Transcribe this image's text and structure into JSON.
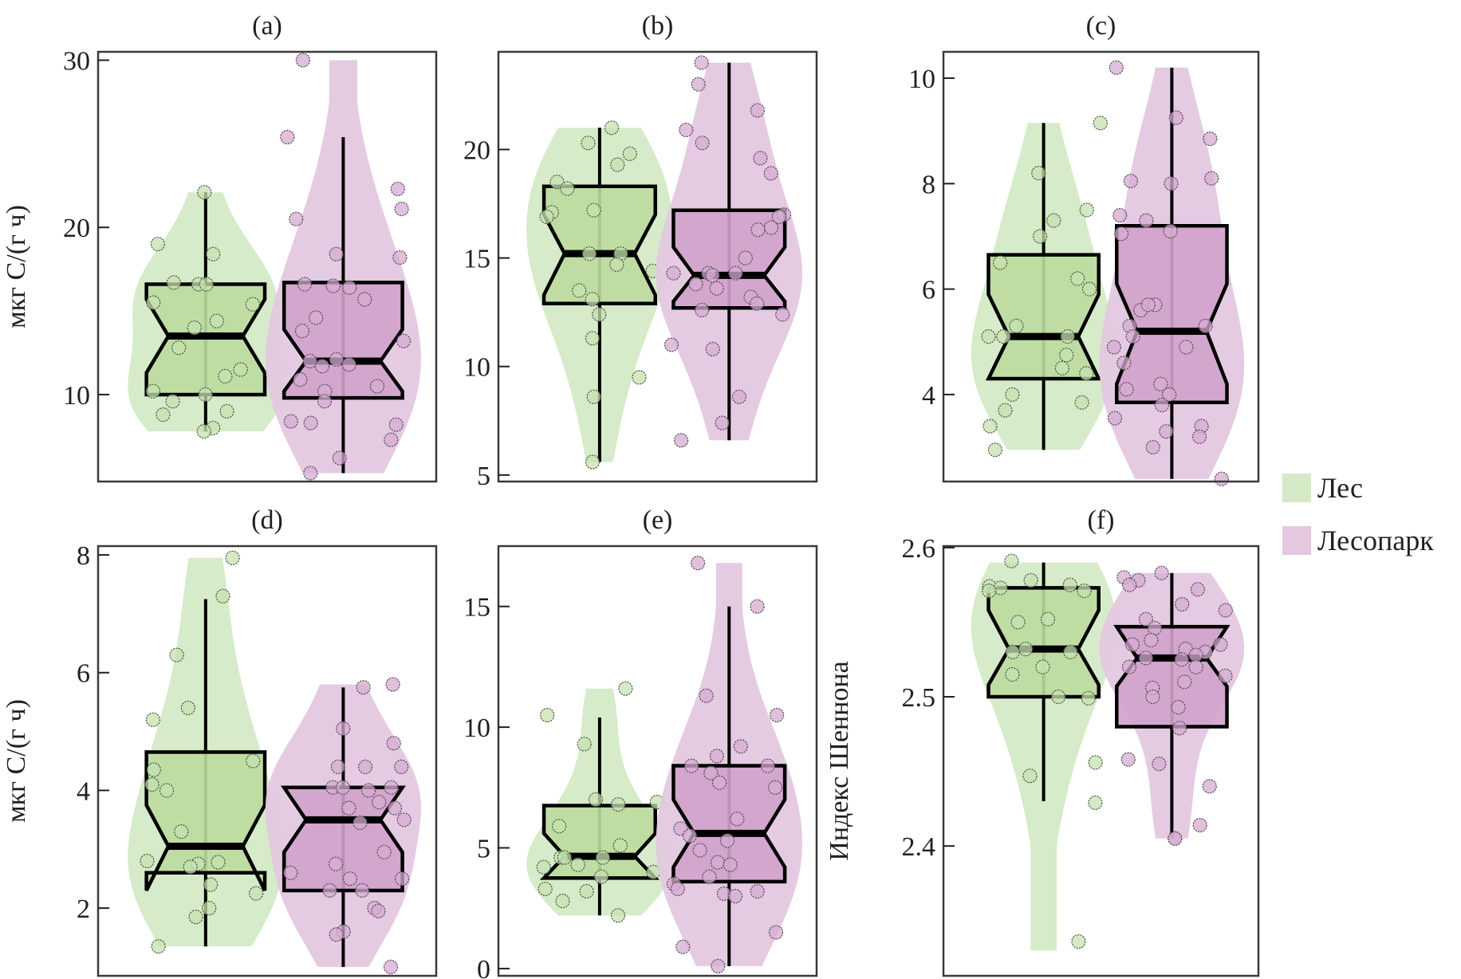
{
  "chart_data": {
    "type": "violin-box",
    "layout": "2x3 grid",
    "legend": {
      "placement": "right",
      "entries": [
        {
          "label": "Лес",
          "color": "#d4eac6"
        },
        {
          "label": "Лесопарк",
          "color": "#e3c8e0"
        }
      ]
    },
    "colors": {
      "Лес": {
        "violin": "#d4eac6",
        "box": "#bddc9e",
        "point_fill": "#c6e2b0",
        "point_stroke": "#4a5a44"
      },
      "Лесопарк": {
        "violin": "#e3c8e0",
        "box": "#d0a2cb",
        "point_fill": "#d6acd2",
        "point_stroke": "#5a4a5a"
      }
    },
    "panels": [
      {
        "id": "a",
        "title": "(a)",
        "ylabel": "мкг C/(г ч)",
        "yticks": [
          10,
          20,
          30
        ],
        "ylim": [
          4.8,
          30.5
        ],
        "groups": [
          {
            "name": "Лес",
            "whisker_low": 7.8,
            "q1": 10.0,
            "median": 13.5,
            "q3": 16.6,
            "whisker_high": 22.1,
            "notch_low": 11.3,
            "notch_high": 15.7,
            "violin_min": 7.8,
            "violin_max": 22.1,
            "points": [
              22.1,
              18.4,
              19.0,
              16.7,
              16.6,
              16.6,
              15.5,
              15.4,
              14.4,
              14.0,
              12.8,
              11.5,
              11.1,
              10.2,
              10.0,
              9.6,
              9.0,
              8.8,
              8.0,
              7.8
            ]
          },
          {
            "name": "Лесопарк",
            "whisker_low": 5.3,
            "q1": 9.8,
            "median": 12.0,
            "q3": 16.7,
            "whisker_high": 25.4,
            "notch_low": 10.2,
            "notch_high": 13.9,
            "violin_min": 5.3,
            "violin_max": 30.0,
            "points": [
              30.0,
              25.4,
              22.3,
              21.1,
              20.5,
              18.4,
              18.2,
              16.6,
              16.5,
              16.4,
              15.7,
              14.6,
              13.8,
              13.2,
              12.1,
              12.0,
              11.8,
              11.7,
              10.9,
              10.5,
              10.2,
              9.6,
              8.4,
              8.2,
              8.3,
              7.3,
              6.2,
              5.3
            ]
          }
        ]
      },
      {
        "id": "b",
        "title": "(b)",
        "ylabel": "",
        "yticks": [
          5,
          10,
          15,
          20
        ],
        "ylim": [
          4.7,
          24.5
        ],
        "groups": [
          {
            "name": "Лес",
            "whisker_low": 5.6,
            "q1": 12.9,
            "median": 15.2,
            "q3": 18.3,
            "whisker_high": 21.0,
            "notch_low": 13.3,
            "notch_high": 17.0,
            "violin_min": 5.6,
            "violin_max": 21.0,
            "points": [
              21.0,
              20.3,
              19.8,
              19.3,
              18.5,
              18.2,
              17.2,
              17.1,
              16.9,
              15.2,
              15.2,
              14.7,
              14.4,
              13.5,
              13.1,
              12.4,
              11.3,
              9.5,
              8.6,
              5.6
            ]
          },
          {
            "name": "Лесопарк",
            "whisker_low": 6.6,
            "q1": 12.7,
            "median": 14.2,
            "q3": 17.2,
            "whisker_high": 24.0,
            "notch_low": 13.0,
            "notch_high": 15.5,
            "violin_min": 6.6,
            "violin_max": 24.0,
            "points": [
              24.0,
              23.0,
              21.8,
              20.9,
              20.3,
              19.6,
              18.9,
              17.0,
              16.9,
              16.4,
              16.3,
              15.0,
              14.3,
              14.3,
              14.3,
              14.2,
              13.8,
              13.6,
              13.2,
              12.9,
              12.6,
              12.4,
              11.0,
              10.8,
              8.6,
              7.4,
              6.6
            ]
          }
        ]
      },
      {
        "id": "c",
        "title": "(c)",
        "ylabel": "",
        "yticks": [
          4,
          6,
          8,
          10
        ],
        "ylim": [
          2.35,
          10.5
        ],
        "groups": [
          {
            "name": "Лес",
            "whisker_low": 2.95,
            "q1": 4.3,
            "median": 5.1,
            "q3": 6.65,
            "whisker_high": 9.15,
            "notch_low": 4.3,
            "notch_high": 5.9,
            "violin_min": 2.95,
            "violin_max": 9.15,
            "points": [
              9.15,
              8.2,
              7.5,
              7.3,
              7.0,
              6.5,
              6.2,
              6.0,
              5.3,
              5.1,
              5.1,
              5.1,
              4.75,
              4.5,
              4.4,
              4.0,
              3.85,
              3.7,
              3.4,
              2.95
            ]
          },
          {
            "name": "Лесопарк",
            "whisker_low": 2.4,
            "q1": 3.85,
            "median": 5.2,
            "q3": 7.2,
            "whisker_high": 10.2,
            "notch_low": 4.2,
            "notch_high": 6.1,
            "violin_min": 2.4,
            "violin_max": 10.2,
            "points": [
              10.2,
              9.25,
              8.85,
              8.1,
              8.05,
              8.0,
              7.4,
              7.3,
              7.1,
              7.05,
              5.7,
              5.6,
              5.7,
              5.3,
              5.3,
              5.1,
              4.9,
              4.9,
              4.6,
              4.2,
              4.1,
              4.0,
              3.8,
              3.55,
              3.4,
              3.3,
              3.2,
              3.0,
              2.4
            ]
          }
        ]
      },
      {
        "id": "d",
        "title": "(d)",
        "ylabel": "мкг C/(г ч)",
        "yticks": [
          2,
          4,
          6,
          8
        ],
        "ylim": [
          0.85,
          8.15
        ],
        "groups": [
          {
            "name": "Лес",
            "whisker_low": 1.35,
            "q1": 2.6,
            "median": 3.05,
            "q3": 4.65,
            "whisker_high": 7.25,
            "notch_low": 2.3,
            "notch_high": 3.75,
            "violin_min": 1.35,
            "violin_max": 7.95,
            "points": [
              7.95,
              7.3,
              6.3,
              5.4,
              5.2,
              4.5,
              4.35,
              4.1,
              4.0,
              3.3,
              2.8,
              2.78,
              2.75,
              2.7,
              2.4,
              2.25,
              2.0,
              1.85,
              1.35
            ]
          },
          {
            "name": "Лесопарк",
            "whisker_low": 1.0,
            "q1": 2.3,
            "median": 3.5,
            "q3": 4.05,
            "whisker_high": 5.75,
            "notch_low": 2.95,
            "notch_high": 4.05,
            "violin_min": 1.0,
            "violin_max": 5.8,
            "points": [
              5.8,
              5.75,
              5.05,
              4.8,
              4.4,
              4.4,
              4.4,
              4.05,
              4.05,
              4.05,
              4.0,
              3.8,
              3.7,
              3.7,
              3.5,
              3.45,
              2.95,
              2.75,
              2.6,
              2.5,
              2.5,
              2.3,
              2.3,
              2.0,
              1.95,
              1.6,
              1.55,
              1.0
            ]
          }
        ]
      },
      {
        "id": "e",
        "title": "(e)",
        "ylabel": "",
        "yticks": [
          0,
          5,
          10,
          15
        ],
        "ylim": [
          -0.3,
          17.5
        ],
        "groups": [
          {
            "name": "Лес",
            "whisker_low": 2.2,
            "q1": 3.75,
            "median": 4.65,
            "q3": 6.75,
            "whisker_high": 10.4,
            "notch_low": 3.75,
            "notch_high": 5.6,
            "violin_min": 2.2,
            "violin_max": 11.6,
            "points": [
              11.6,
              10.5,
              9.3,
              7.0,
              6.9,
              6.8,
              5.9,
              5.1,
              4.6,
              4.6,
              4.6,
              4.3,
              4.2,
              4.0,
              3.8,
              3.3,
              3.2,
              2.8,
              2.2
            ]
          },
          {
            "name": "Лесопарк",
            "whisker_low": 0.1,
            "q1": 3.6,
            "median": 5.6,
            "q3": 8.4,
            "whisker_high": 15.0,
            "notch_low": 4.2,
            "notch_high": 7.0,
            "violin_min": 0.1,
            "violin_max": 16.8,
            "points": [
              16.8,
              15.0,
              11.3,
              10.5,
              9.2,
              8.8,
              8.4,
              8.4,
              8.1,
              7.7,
              7.5,
              6.2,
              5.8,
              5.5,
              5.3,
              4.9,
              4.4,
              4.3,
              3.8,
              3.5,
              3.3,
              3.2,
              3.1,
              3.0,
              1.5,
              0.9,
              0.1
            ]
          }
        ]
      },
      {
        "id": "f",
        "title": "(f)",
        "ylabel": "Индекс Шеннона",
        "yticks": [
          2.4,
          2.5,
          2.6
        ],
        "ylim": [
          2.313,
          2.601
        ],
        "groups": [
          {
            "name": "Лес",
            "whisker_low": 2.43,
            "q1": 2.5,
            "median": 2.532,
            "q3": 2.573,
            "whisker_high": 2.59,
            "notch_low": 2.508,
            "notch_high": 2.558,
            "violin_min": 2.33,
            "violin_max": 2.59,
            "points": [
              2.591,
              2.578,
              2.574,
              2.573,
              2.575,
              2.571,
              2.571,
              2.552,
              2.55,
              2.532,
              2.53,
              2.53,
              2.52,
              2.515,
              2.5,
              2.499,
              2.456,
              2.447,
              2.429,
              2.336
            ]
          },
          {
            "name": "Лесопарк",
            "whisker_low": 2.405,
            "q1": 2.48,
            "median": 2.526,
            "q3": 2.547,
            "whisker_high": 2.583,
            "notch_low": 2.507,
            "notch_high": 2.547,
            "violin_min": 2.405,
            "violin_max": 2.583,
            "points": [
              2.583,
              2.58,
              2.578,
              2.575,
              2.572,
              2.562,
              2.558,
              2.552,
              2.546,
              2.538,
              2.535,
              2.535,
              2.532,
              2.53,
              2.528,
              2.526,
              2.525,
              2.52,
              2.52,
              2.514,
              2.51,
              2.506,
              2.5,
              2.493,
              2.479,
              2.458,
              2.455,
              2.44,
              2.414,
              2.405,
              2.405
            ]
          }
        ]
      }
    ]
  }
}
